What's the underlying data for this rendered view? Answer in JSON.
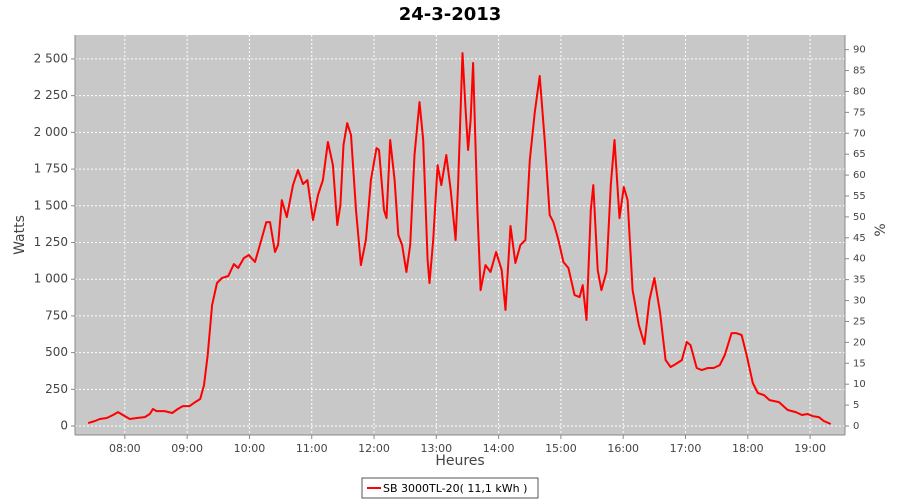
{
  "chart_data": {
    "type": "line",
    "title": "24-3-2013",
    "x_label": "Heures",
    "y_label": "Watts",
    "y2_label": "%",
    "x": [
      7.41,
      7.52,
      7.6,
      7.71,
      7.81,
      7.89,
      8.0,
      8.08,
      8.19,
      8.32,
      8.4,
      8.45,
      8.51,
      8.64,
      8.76,
      8.85,
      8.93,
      9.04,
      9.13,
      9.21,
      9.27,
      9.33,
      9.4,
      9.48,
      9.56,
      9.66,
      9.75,
      9.82,
      9.91,
      9.99,
      10.09,
      10.19,
      10.27,
      10.33,
      10.41,
      10.46,
      10.52,
      10.6,
      10.7,
      10.78,
      10.86,
      10.93,
      11.02,
      11.1,
      11.18,
      11.26,
      11.34,
      11.41,
      11.46,
      11.51,
      11.57,
      11.63,
      11.71,
      11.79,
      11.87,
      11.95,
      12.04,
      12.08,
      12.16,
      12.2,
      12.26,
      12.33,
      12.39,
      12.45,
      12.52,
      12.58,
      12.65,
      12.73,
      12.79,
      12.86,
      12.89,
      12.95,
      13.02,
      13.08,
      13.16,
      13.23,
      13.31,
      13.35,
      13.42,
      13.47,
      13.51,
      13.55,
      13.59,
      13.66,
      13.71,
      13.79,
      13.87,
      13.96,
      14.05,
      14.11,
      14.19,
      14.27,
      14.35,
      14.43,
      14.5,
      14.58,
      14.66,
      14.74,
      14.82,
      14.88,
      14.96,
      15.04,
      15.12,
      15.22,
      15.3,
      15.35,
      15.41,
      15.48,
      15.52,
      15.59,
      15.65,
      15.73,
      15.8,
      15.86,
      15.94,
      16.01,
      16.07,
      16.15,
      16.25,
      16.34,
      16.42,
      16.5,
      16.59,
      16.68,
      16.76,
      16.84,
      16.94,
      17.02,
      17.08,
      17.18,
      17.26,
      17.36,
      17.45,
      17.55,
      17.63,
      17.74,
      17.81,
      17.9,
      17.98,
      18.08,
      18.16,
      18.26,
      18.35,
      18.5,
      18.64,
      18.77,
      18.87,
      18.96,
      19.04,
      19.14,
      19.22,
      19.33
    ],
    "series": [
      {
        "name": "SB 3000TL-20( 11,1 kWh )",
        "color": "#ff0000",
        "values": [
          20,
          34,
          48,
          55,
          75,
          95,
          68,
          48,
          55,
          61,
          82,
          116,
          102,
          102,
          89,
          116,
          136,
          136,
          163,
          184,
          279,
          484,
          824,
          974,
          1008,
          1022,
          1103,
          1076,
          1144,
          1165,
          1117,
          1267,
          1389,
          1389,
          1185,
          1233,
          1539,
          1423,
          1641,
          1743,
          1648,
          1675,
          1403,
          1573,
          1675,
          1934,
          1777,
          1369,
          1505,
          1914,
          2063,
          1982,
          1471,
          1096,
          1267,
          1675,
          1893,
          1880,
          1471,
          1416,
          1948,
          1675,
          1301,
          1233,
          1049,
          1233,
          1846,
          2206,
          1948,
          1130,
          974,
          1267,
          1777,
          1641,
          1846,
          1607,
          1267,
          1641,
          2540,
          2152,
          1880,
          2084,
          2472,
          1471,
          926,
          1096,
          1049,
          1185,
          1062,
          790,
          1362,
          1110,
          1233,
          1267,
          1811,
          2138,
          2384,
          1948,
          1437,
          1389,
          1267,
          1117,
          1076,
          892,
          878,
          960,
          722,
          1471,
          1641,
          1062,
          926,
          1049,
          1641,
          1948,
          1416,
          1628,
          1539,
          926,
          688,
          558,
          858,
          1008,
          776,
          449,
          402,
          422,
          449,
          572,
          551,
          395,
          381,
          395,
          395,
          415,
          484,
          633,
          633,
          620,
          484,
          293,
          225,
          211,
          177,
          163,
          109,
          95,
          75,
          82,
          68,
          61,
          34,
          14
        ]
      }
    ],
    "xlim": [
      7.2,
      19.56
    ],
    "xticks": [
      {
        "value": 8,
        "label": "08:00"
      },
      {
        "value": 9,
        "label": "09:00"
      },
      {
        "value": 10,
        "label": "10:00"
      },
      {
        "value": 11,
        "label": "11:00"
      },
      {
        "value": 12,
        "label": "12:00"
      },
      {
        "value": 13,
        "label": "13:00"
      },
      {
        "value": 14,
        "label": "14:00"
      },
      {
        "value": 15,
        "label": "15:00"
      },
      {
        "value": 16,
        "label": "16:00"
      },
      {
        "value": 17,
        "label": "17:00"
      },
      {
        "value": 18,
        "label": "18:00"
      },
      {
        "value": 19,
        "label": "19:00"
      }
    ],
    "ylim": [
      -61,
      2663
    ],
    "yticks": [
      0,
      250,
      500,
      750,
      {
        "value": 1000,
        "label": "1 000"
      },
      {
        "value": 1250,
        "label": "1 250"
      },
      {
        "value": 1500,
        "label": "1 500"
      },
      {
        "value": 1750,
        "label": "1 750"
      },
      {
        "value": 2000,
        "label": "2 000"
      },
      {
        "value": 2250,
        "label": "2 250"
      },
      {
        "value": 2500,
        "label": "2 500"
      }
    ],
    "y2lim": [
      -2.15,
      93.5
    ],
    "y2ticks": [
      0,
      5,
      10,
      15,
      20,
      25,
      30,
      35,
      40,
      45,
      50,
      55,
      60,
      65,
      70,
      75,
      80,
      85,
      90
    ],
    "grid": true,
    "legend": "bottom"
  }
}
